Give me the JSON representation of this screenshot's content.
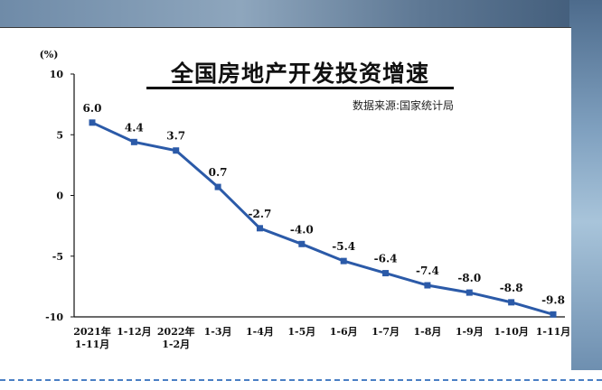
{
  "chart_data": {
    "type": "line",
    "title": "全国房地产开发投资增速",
    "source": "数据来源:国家统计局",
    "yunit": "(%)",
    "ylim": [
      -10,
      10
    ],
    "yticks": [
      "10",
      "5",
      "0",
      "-5",
      "-10"
    ],
    "grid": false,
    "legend": "none",
    "categories": [
      [
        "2021年",
        "1-11月"
      ],
      [
        "1-12月"
      ],
      [
        "2022年",
        "1-2月"
      ],
      [
        "1-3月"
      ],
      [
        "1-4月"
      ],
      [
        "1-5月"
      ],
      [
        "1-6月"
      ],
      [
        "1-7月"
      ],
      [
        "1-8月"
      ],
      [
        "1-9月"
      ],
      [
        "1-10月"
      ],
      [
        "1-11月"
      ]
    ],
    "values": [
      6.0,
      4.4,
      3.7,
      0.7,
      -2.7,
      -4.0,
      -5.4,
      -6.4,
      -7.4,
      -8.0,
      -8.8,
      -9.8
    ],
    "value_labels": [
      "6.0",
      "4.4",
      "3.7",
      "0.7",
      "-2.7",
      "-4.0",
      "-5.4",
      "-6.4",
      "-7.4",
      "-8.0",
      "-8.8",
      "-9.8"
    ],
    "line_color": "#2b5aa8"
  }
}
